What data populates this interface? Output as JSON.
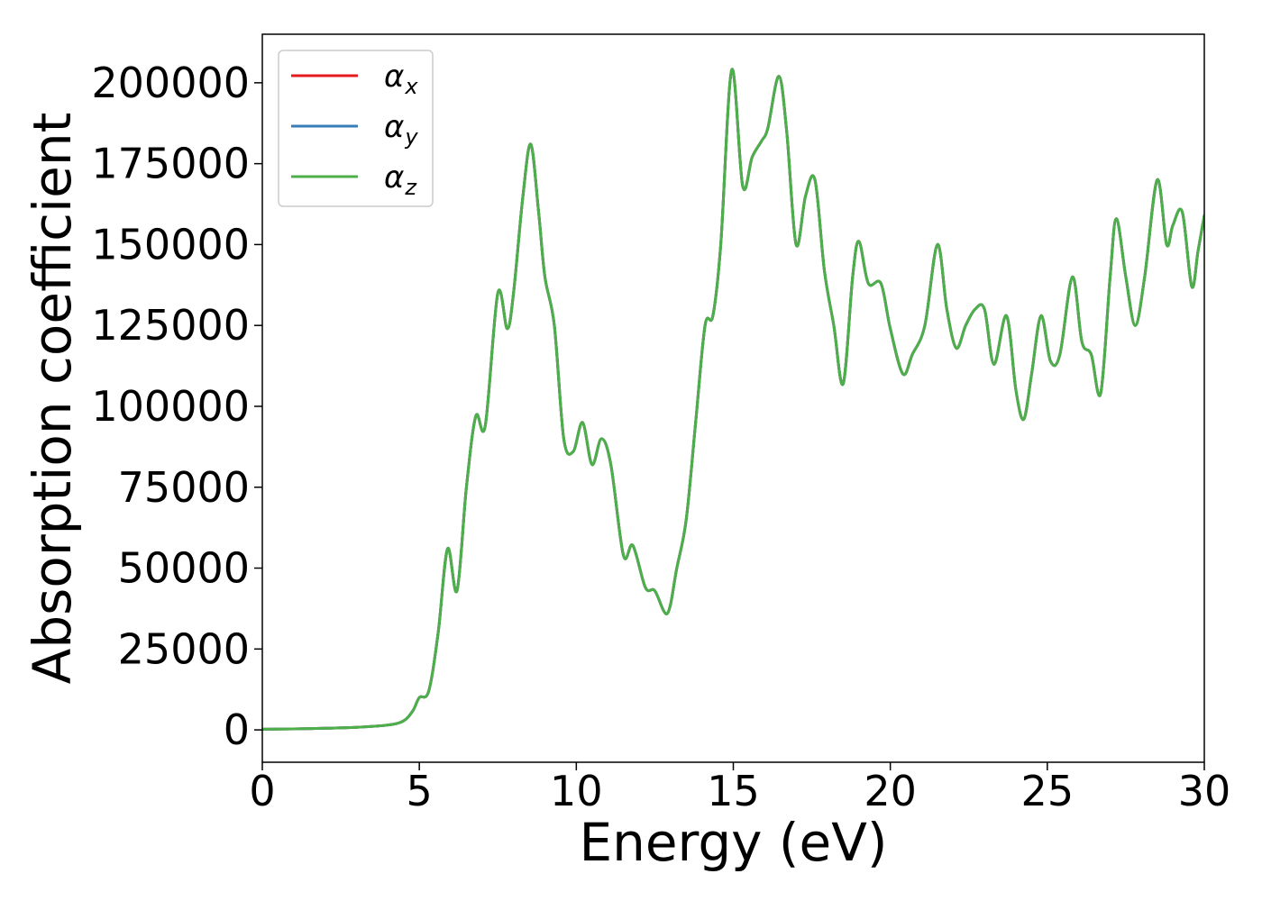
{
  "chart_data": {
    "type": "line",
    "title": "",
    "xlabel": "Energy (eV)",
    "ylabel": "Absorption coefficient",
    "xlim": [
      0,
      30
    ],
    "ylim": [
      -10000,
      215000
    ],
    "xticks": [
      0,
      5,
      10,
      15,
      20,
      25,
      30
    ],
    "yticks": [
      0,
      25000,
      50000,
      75000,
      100000,
      125000,
      150000,
      175000,
      200000
    ],
    "grid": false,
    "legend_position": "top-left",
    "series": [
      {
        "name": "α_x",
        "symbol": "α",
        "subscript": "x",
        "color": "#e41a1c"
      },
      {
        "name": "α_y",
        "symbol": "α",
        "subscript": "y",
        "color": "#377eb8"
      },
      {
        "name": "α_z",
        "symbol": "α",
        "subscript": "z",
        "color": "#4daf4a"
      }
    ],
    "x": [
      0,
      1,
      2,
      3,
      4,
      4.5,
      4.8,
      5.0,
      5.3,
      5.6,
      5.9,
      6.2,
      6.5,
      6.8,
      7.1,
      7.5,
      7.8,
      8.0,
      8.3,
      8.55,
      8.8,
      9.0,
      9.3,
      9.6,
      9.9,
      10.2,
      10.5,
      10.8,
      11.1,
      11.5,
      11.8,
      12.2,
      12.5,
      12.9,
      13.2,
      13.5,
      13.8,
      14.1,
      14.35,
      14.6,
      14.95,
      15.3,
      15.6,
      15.9,
      16.1,
      16.45,
      16.7,
      17.0,
      17.3,
      17.6,
      17.9,
      18.2,
      18.5,
      18.8,
      19.0,
      19.3,
      19.7,
      20.0,
      20.4,
      20.7,
      21.1,
      21.5,
      21.8,
      22.1,
      22.4,
      22.7,
      23.0,
      23.3,
      23.7,
      24.0,
      24.25,
      24.5,
      24.8,
      25.1,
      25.4,
      25.8,
      26.1,
      26.4,
      26.7,
      27.0,
      27.2,
      27.5,
      27.8,
      28.1,
      28.5,
      28.8,
      29.0,
      29.3,
      29.6,
      29.8,
      30.0
    ],
    "values": [
      200,
      300,
      500,
      800,
      1500,
      2800,
      6000,
      10000,
      12000,
      30000,
      56000,
      43000,
      75000,
      97000,
      94000,
      135000,
      124000,
      135000,
      165000,
      181000,
      160000,
      140000,
      125000,
      90000,
      86000,
      95000,
      82000,
      90000,
      82000,
      54000,
      57000,
      44000,
      43000,
      36000,
      50000,
      65000,
      95000,
      125000,
      128000,
      150000,
      204000,
      168000,
      177000,
      182000,
      186000,
      202000,
      185000,
      150000,
      165000,
      170000,
      142000,
      125000,
      107000,
      140000,
      151000,
      138000,
      138000,
      124000,
      110000,
      116000,
      125000,
      150000,
      130000,
      118000,
      125000,
      130000,
      130000,
      113000,
      128000,
      105000,
      96000,
      110000,
      128000,
      114000,
      116000,
      140000,
      120000,
      116000,
      104000,
      140000,
      158000,
      140000,
      125000,
      140000,
      170000,
      150000,
      156000,
      160000,
      137000,
      148000,
      159000
    ]
  }
}
